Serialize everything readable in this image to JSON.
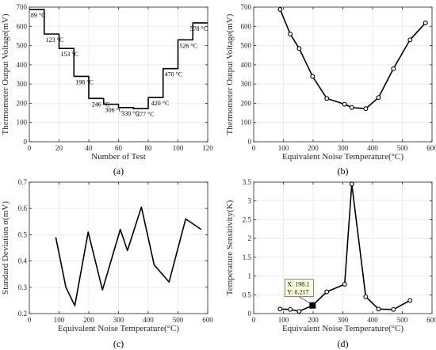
{
  "chart_data": [
    {
      "panel_label": "(a)",
      "type": "line",
      "step": true,
      "xlabel": "Number of Test",
      "ylabel": "Thermometer Output Voltage(mV)",
      "xlim": [
        0,
        120
      ],
      "ylim": [
        0,
        700
      ],
      "xticks": [
        0,
        20,
        40,
        60,
        80,
        100,
        120
      ],
      "yticks": [
        0,
        100,
        200,
        300,
        400,
        500,
        600,
        700
      ],
      "grid": true,
      "x": [
        0,
        10,
        20,
        30,
        40,
        50,
        60,
        70,
        80,
        90,
        100,
        110,
        120
      ],
      "y": [
        688,
        560,
        485,
        340,
        225,
        195,
        178,
        172,
        230,
        380,
        530,
        618,
        618
      ],
      "annotations": [
        {
          "x": 1,
          "y": 688,
          "text": "89 °C"
        },
        {
          "x": 11,
          "y": 560,
          "text": "123 °C"
        },
        {
          "x": 21,
          "y": 485,
          "text": "153 °C"
        },
        {
          "x": 31,
          "y": 340,
          "text": "198 °C"
        },
        {
          "x": 42,
          "y": 225,
          "text": "246 °C"
        },
        {
          "x": 51,
          "y": 195,
          "text": "306 °C"
        },
        {
          "x": 62,
          "y": 178,
          "text": "330 °C"
        },
        {
          "x": 72,
          "y": 172,
          "text": "377 °C"
        },
        {
          "x": 82,
          "y": 230,
          "text": "420 °C"
        },
        {
          "x": 91,
          "y": 380,
          "text": "470 °C"
        },
        {
          "x": 101,
          "y": 530,
          "text": "526 °C"
        },
        {
          "x": 108,
          "y": 618,
          "text": "578 °C"
        }
      ]
    },
    {
      "panel_label": "(b)",
      "type": "line",
      "markers": true,
      "xlabel": "Equivalent Noise Temperature(°C)",
      "ylabel": "Thermometer Output Voltage(mV)",
      "xlim": [
        0,
        600
      ],
      "ylim": [
        0,
        700
      ],
      "xticks": [
        0,
        100,
        200,
        300,
        400,
        500,
        600
      ],
      "yticks": [
        0,
        100,
        200,
        300,
        400,
        500,
        600,
        700
      ],
      "grid": true,
      "x": [
        89,
        123,
        153,
        198,
        246,
        306,
        330,
        377,
        420,
        470,
        526,
        578
      ],
      "y": [
        688,
        560,
        485,
        340,
        225,
        195,
        178,
        172,
        230,
        380,
        530,
        618
      ]
    },
    {
      "panel_label": "(c)",
      "type": "line",
      "xlabel": "Equivalent Noise Temperature(°C)",
      "ylabel": "Standard Deviation σ(mV)",
      "xlim": [
        0,
        600
      ],
      "ylim": [
        0.2,
        0.7
      ],
      "xticks": [
        0,
        100,
        200,
        300,
        400,
        500,
        600
      ],
      "yticks": [
        0.2,
        0.3,
        0.4,
        0.5,
        0.6,
        0.7
      ],
      "grid": true,
      "x": [
        89,
        123,
        153,
        198,
        246,
        306,
        330,
        377,
        420,
        470,
        526,
        578
      ],
      "y": [
        0.49,
        0.3,
        0.23,
        0.51,
        0.29,
        0.52,
        0.44,
        0.605,
        0.385,
        0.32,
        0.56,
        0.52
      ]
    },
    {
      "panel_label": "(d)",
      "type": "line",
      "markers": true,
      "xlabel": "Equivalent Noise Temperature(°C)",
      "ylabel": "Temperature Sensitivity(K)",
      "xlim": [
        0,
        600
      ],
      "ylim": [
        0,
        3.5
      ],
      "xticks": [
        0,
        100,
        200,
        300,
        400,
        500,
        600
      ],
      "yticks": [
        0,
        0.5,
        1,
        1.5,
        2,
        2.5,
        3,
        3.5
      ],
      "grid": true,
      "x": [
        89,
        123,
        153,
        198,
        246,
        306,
        330,
        377,
        420,
        470,
        526
      ],
      "y": [
        0.12,
        0.11,
        0.06,
        0.217,
        0.58,
        0.78,
        3.45,
        0.45,
        0.12,
        0.11,
        0.35
      ],
      "datatip": {
        "x_value": 198.1,
        "y_value": 0.217,
        "line1": "X: 198.1",
        "line2": "Y: 0.217"
      }
    }
  ]
}
